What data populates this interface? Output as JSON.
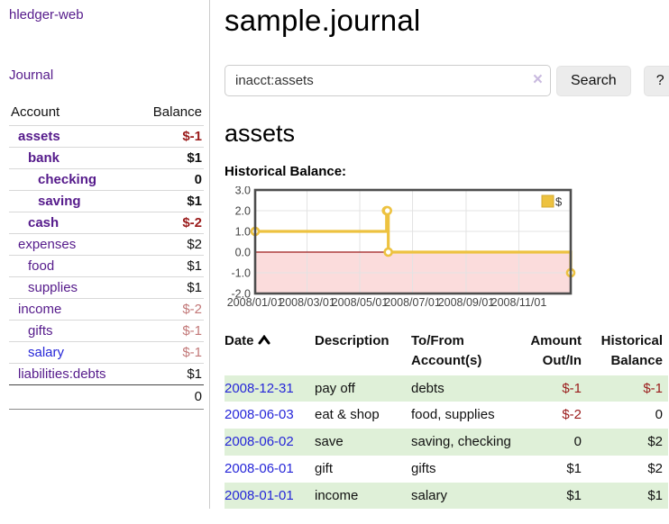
{
  "sidebar": {
    "app_title": "hledger-web",
    "journal_link": "Journal",
    "accounts_table": {
      "headers": {
        "account": "Account",
        "balance": "Balance"
      },
      "rows": [
        {
          "name": "assets",
          "indent": 0,
          "bold": true,
          "balance": "$-1",
          "balance_style": "neg-strong",
          "link_style": "purple"
        },
        {
          "name": "bank",
          "indent": 1,
          "bold": true,
          "balance": "$1",
          "balance_style": "pos",
          "link_style": "purple"
        },
        {
          "name": "checking",
          "indent": 2,
          "bold": true,
          "balance": "0",
          "balance_style": "pos",
          "link_style": "purple"
        },
        {
          "name": "saving",
          "indent": 2,
          "bold": true,
          "balance": "$1",
          "balance_style": "pos",
          "link_style": "purple"
        },
        {
          "name": "cash",
          "indent": 1,
          "bold": true,
          "balance": "$-2",
          "balance_style": "neg-strong",
          "link_style": "purple"
        },
        {
          "name": "expenses",
          "indent": 0,
          "bold": false,
          "balance": "$2",
          "balance_style": "pos",
          "link_style": "purple"
        },
        {
          "name": "food",
          "indent": 1,
          "bold": false,
          "balance": "$1",
          "balance_style": "pos",
          "link_style": "purple"
        },
        {
          "name": "supplies",
          "indent": 1,
          "bold": false,
          "balance": "$1",
          "balance_style": "pos",
          "link_style": "purple"
        },
        {
          "name": "income",
          "indent": 0,
          "bold": false,
          "balance": "$-2",
          "balance_style": "neg-soft",
          "link_style": "purple"
        },
        {
          "name": "gifts",
          "indent": 1,
          "bold": false,
          "balance": "$-1",
          "balance_style": "neg-soft",
          "link_style": "purple"
        },
        {
          "name": "salary",
          "indent": 1,
          "bold": false,
          "balance": "$-1",
          "balance_style": "neg-soft",
          "link_style": "blue"
        },
        {
          "name": "liabilities:debts",
          "indent": 0,
          "bold": false,
          "balance": "$1",
          "balance_style": "pos",
          "link_style": "purple"
        }
      ],
      "total": "0"
    }
  },
  "main": {
    "page_title": "sample.journal",
    "search": {
      "value": "inacct:assets",
      "clear_icon": "×",
      "button_label": "Search",
      "help_label": "?"
    },
    "account_heading": "assets",
    "chart_label": "Historical Balance:"
  },
  "chart_data": {
    "type": "line",
    "step": true,
    "title": "Historical Balance:",
    "series": [
      {
        "name": "$",
        "color": "#edc240",
        "points": [
          [
            "2008/01/01",
            1
          ],
          [
            "2008/06/01",
            2
          ],
          [
            "2008/06/02",
            2
          ],
          [
            "2008/06/03",
            0
          ],
          [
            "2008/12/31",
            -1
          ]
        ]
      }
    ],
    "x_range": [
      "2008/01/01",
      "2008/12/31"
    ],
    "x_ticks": [
      "2008/01/01",
      "2008/03/01",
      "2008/05/01",
      "2008/07/01",
      "2008/09/01",
      "2008/11/01"
    ],
    "y_ticks": [
      -2.0,
      -1.0,
      0.0,
      1.0,
      2.0,
      3.0
    ],
    "ylim": [
      -2,
      3
    ],
    "grid": true,
    "legend_position": "top-right",
    "negative_region_color": "#fbdcdc",
    "zero_line_color": "#9c1b1b",
    "border_color": "#4d4d4d",
    "tick_label_color": "#444444"
  },
  "transactions": {
    "headers": {
      "date": "Date",
      "description": "Description",
      "accounts": "To/From Account(s)",
      "amount": "Amount Out/In",
      "balance": "Historical Balance"
    },
    "rows": [
      {
        "date": "2008-12-31",
        "description": "pay off",
        "accounts": "debts",
        "amount": "$-1",
        "amount_neg": true,
        "balance": "$-1",
        "balance_neg": true
      },
      {
        "date": "2008-06-03",
        "description": "eat & shop",
        "accounts": "food, supplies",
        "amount": "$-2",
        "amount_neg": true,
        "balance": "0",
        "balance_neg": false
      },
      {
        "date": "2008-06-02",
        "description": "save",
        "accounts": "saving, checking",
        "amount": "0",
        "amount_neg": false,
        "balance": "$2",
        "balance_neg": false
      },
      {
        "date": "2008-06-01",
        "description": "gift",
        "accounts": "gifts",
        "amount": "$1",
        "amount_neg": false,
        "balance": "$2",
        "balance_neg": false
      },
      {
        "date": "2008-01-01",
        "description": "income",
        "accounts": "salary",
        "amount": "$1",
        "amount_neg": false,
        "balance": "$1",
        "balance_neg": false
      }
    ]
  },
  "colors": {
    "link_purple": "#551a8b",
    "link_blue": "#2626d8",
    "negative_strong": "#9a1b1b",
    "negative_soft": "#c27878",
    "row_stripe_green": "#dff0d8",
    "series_gold": "#edc240"
  }
}
